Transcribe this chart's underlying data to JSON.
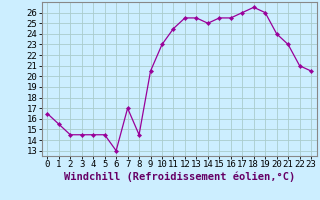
{
  "hours": [
    0,
    1,
    2,
    3,
    4,
    5,
    6,
    7,
    8,
    9,
    10,
    11,
    12,
    13,
    14,
    15,
    16,
    17,
    18,
    19,
    20,
    21,
    22,
    23
  ],
  "values": [
    16.5,
    15.5,
    14.5,
    14.5,
    14.5,
    14.5,
    13.0,
    17.0,
    14.5,
    20.5,
    23.0,
    24.5,
    25.5,
    25.5,
    25.0,
    25.5,
    25.5,
    26.0,
    26.5,
    26.0,
    24.0,
    23.0,
    21.0,
    20.5
  ],
  "line_color": "#990099",
  "marker": "D",
  "marker_size": 2.2,
  "bg_color": "#cceeff",
  "grid_color": "#aacccc",
  "xlabel": "Windchill (Refroidissement éolien,°C)",
  "ylim_min": 12.5,
  "ylim_max": 27.0,
  "yticks": [
    13,
    14,
    15,
    16,
    17,
    18,
    19,
    20,
    21,
    22,
    23,
    24,
    25,
    26
  ],
  "tick_label_fontsize": 6.5,
  "xlabel_fontsize": 7.5,
  "spine_color": "#888888"
}
